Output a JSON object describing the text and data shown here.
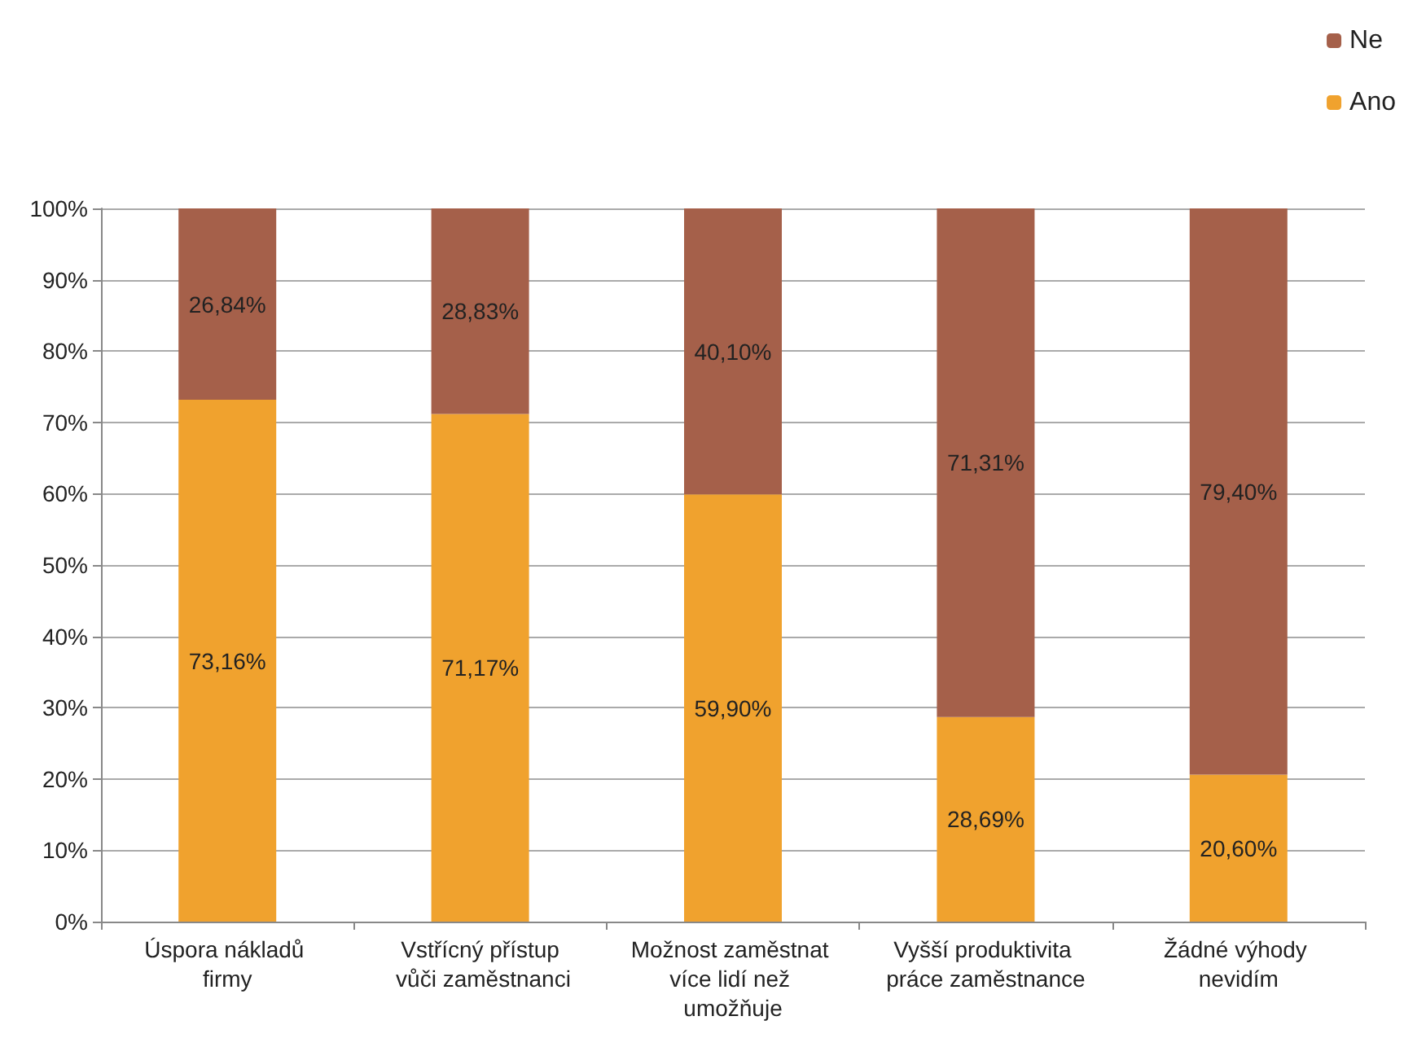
{
  "chart_data": {
    "type": "bar",
    "stacked": true,
    "categories": [
      "Úspora nákladů firmy",
      "Vstřícný přístup vůči zaměstnanci",
      "Možnost zaměstnat více lidí než umožňuje",
      "Vyšší produktivita práce zaměstnance",
      "Žádné výhody nevidím"
    ],
    "series": [
      {
        "name": "Ano",
        "color": "#f0a22e",
        "values": [
          73.16,
          71.17,
          59.9,
          28.69,
          20.6
        ],
        "value_labels": [
          "73,16%",
          "71,17%",
          "59,90%",
          "28,69%",
          "20,60%"
        ]
      },
      {
        "name": "Ne",
        "color": "#a5604a",
        "values": [
          26.84,
          28.83,
          40.1,
          71.31,
          79.4
        ],
        "value_labels": [
          "26,84%",
          "28,83%",
          "40,10%",
          "71,31%",
          "79,40%"
        ]
      }
    ],
    "ylim": [
      0,
      100
    ],
    "yticks": [
      {
        "value": 0,
        "label": "0%"
      },
      {
        "value": 10,
        "label": "10%"
      },
      {
        "value": 20,
        "label": "20%"
      },
      {
        "value": 30,
        "label": "30%"
      },
      {
        "value": 40,
        "label": "40%"
      },
      {
        "value": 50,
        "label": "50%"
      },
      {
        "value": 60,
        "label": "60%"
      },
      {
        "value": 70,
        "label": "70%"
      },
      {
        "value": 80,
        "label": "80%"
      },
      {
        "value": 90,
        "label": "90%"
      },
      {
        "value": 100,
        "label": "100%"
      }
    ],
    "grid": "y",
    "legend": "top right"
  }
}
